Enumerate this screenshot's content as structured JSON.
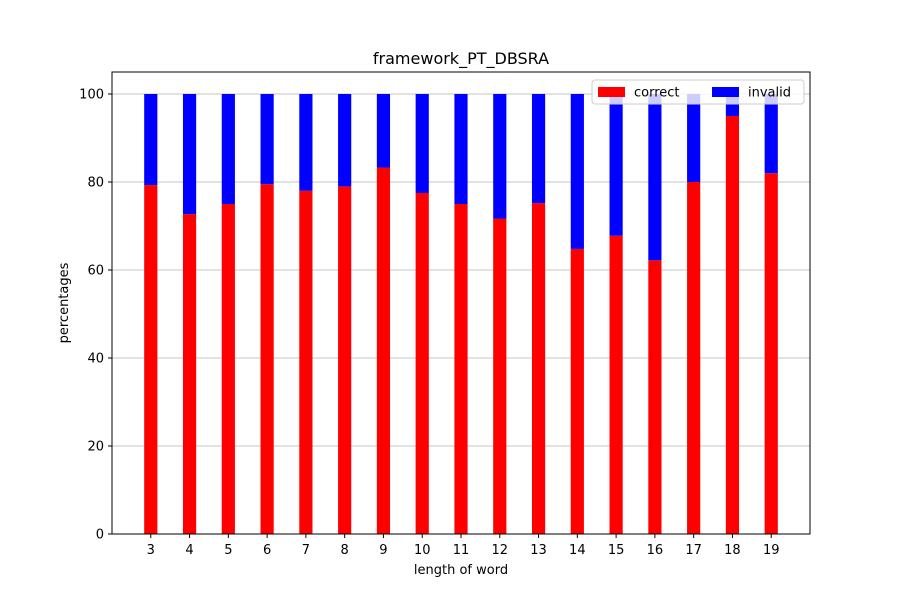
{
  "chart_data": {
    "type": "bar",
    "stacked": true,
    "title": "framework_PT_DBSRA",
    "xlabel": "length of word",
    "ylabel": "percentages",
    "ylim": [
      0,
      105
    ],
    "yticks": [
      0,
      20,
      40,
      60,
      80,
      100
    ],
    "grid": "horizontal",
    "legend_position": "top-right",
    "categories": [
      "3",
      "4",
      "5",
      "6",
      "7",
      "8",
      "9",
      "10",
      "11",
      "12",
      "13",
      "14",
      "15",
      "16",
      "17",
      "18",
      "19"
    ],
    "series": [
      {
        "name": "correct",
        "color": "#ff0000",
        "values": [
          79.3,
          72.7,
          75.0,
          79.5,
          78.0,
          79.0,
          83.3,
          77.5,
          75.0,
          71.7,
          75.2,
          64.8,
          67.8,
          62.2,
          80.0,
          95.0,
          82.0
        ]
      },
      {
        "name": "invalid",
        "color": "#0000ff",
        "values": [
          20.7,
          27.3,
          25.0,
          20.5,
          22.0,
          21.0,
          16.7,
          22.5,
          25.0,
          28.3,
          24.8,
          35.2,
          32.2,
          37.8,
          20.0,
          5.0,
          18.0
        ]
      }
    ]
  }
}
